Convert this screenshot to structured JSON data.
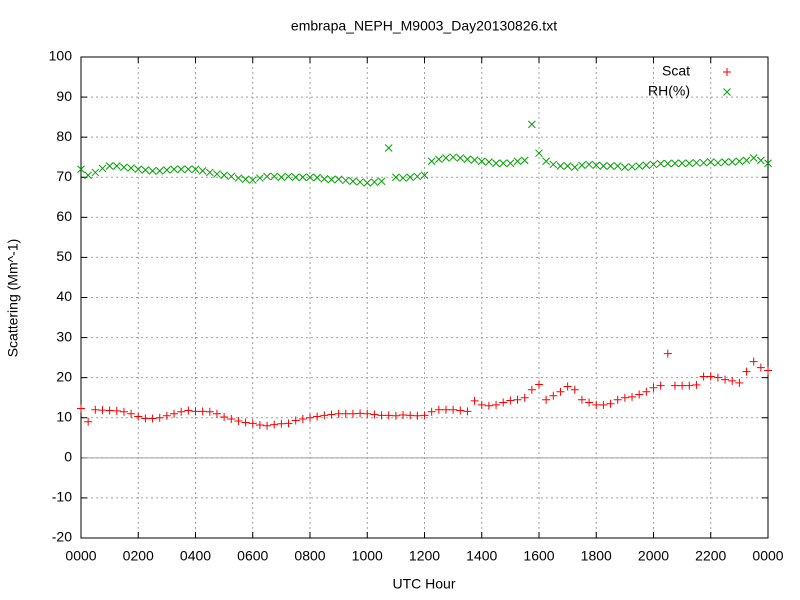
{
  "chart_data": {
    "type": "scatter",
    "title": "embrapa_NEPH_M9003_Day20130826.txt",
    "x_label": "UTC Hour",
    "y_label": "Scattering (Mm^-1)",
    "xlim": [
      0,
      24
    ],
    "xticks": [
      {
        "value": 0,
        "label": "0000"
      },
      {
        "value": 2,
        "label": "0200"
      },
      {
        "value": 4,
        "label": "0400"
      },
      {
        "value": 6,
        "label": "0600"
      },
      {
        "value": 8,
        "label": "0800"
      },
      {
        "value": 10,
        "label": "1000"
      },
      {
        "value": 12,
        "label": "1200"
      },
      {
        "value": 14,
        "label": "1400"
      },
      {
        "value": 16,
        "label": "1600"
      },
      {
        "value": 18,
        "label": "1800"
      },
      {
        "value": 20,
        "label": "2000"
      },
      {
        "value": 22,
        "label": "2200"
      },
      {
        "value": 24,
        "label": "0000"
      }
    ],
    "ylim": [
      -20,
      100
    ],
    "yticks": [
      -20,
      -10,
      0,
      10,
      20,
      30,
      40,
      50,
      60,
      70,
      80,
      90,
      100
    ],
    "grid": true,
    "zeroaxis": true,
    "legend": "top-right",
    "x": [
      0,
      0.25,
      0.5,
      0.75,
      1,
      1.25,
      1.5,
      1.75,
      2,
      2.25,
      2.5,
      2.75,
      3,
      3.25,
      3.5,
      3.75,
      4,
      4.25,
      4.5,
      4.75,
      5,
      5.25,
      5.5,
      5.75,
      6,
      6.25,
      6.5,
      6.75,
      7,
      7.25,
      7.5,
      7.75,
      8,
      8.25,
      8.5,
      8.75,
      9,
      9.25,
      9.5,
      9.75,
      10,
      10.25,
      10.5,
      10.75,
      11,
      11.25,
      11.5,
      11.75,
      12,
      12.25,
      12.5,
      12.75,
      13,
      13.25,
      13.5,
      13.75,
      14,
      14.25,
      14.5,
      14.75,
      15,
      15.25,
      15.5,
      15.75,
      16,
      16.25,
      16.5,
      16.75,
      17,
      17.25,
      17.5,
      17.75,
      18,
      18.25,
      18.5,
      18.75,
      19,
      19.25,
      19.5,
      19.75,
      20,
      20.25,
      20.5,
      20.75,
      21,
      21.25,
      21.5,
      21.75,
      22,
      22.25,
      22.5,
      22.75,
      23,
      23.25,
      23.5,
      23.75,
      24
    ],
    "series": [
      {
        "name": "Scat",
        "color": "#ff0000",
        "marker": "plus",
        "values": [
          12.3,
          9.0,
          12.0,
          11.9,
          11.8,
          11.7,
          11.5,
          11.0,
          10.3,
          9.8,
          9.8,
          10.0,
          10.5,
          11.0,
          11.5,
          11.8,
          11.6,
          11.6,
          11.5,
          11.0,
          10.2,
          9.7,
          9.2,
          8.8,
          8.6,
          8.2,
          8.0,
          8.3,
          8.5,
          8.6,
          9.3,
          9.7,
          10.0,
          10.3,
          10.6,
          10.8,
          11.0,
          11.0,
          11.0,
          11.1,
          11.0,
          10.8,
          10.6,
          10.6,
          10.5,
          10.7,
          10.6,
          10.5,
          10.6,
          11.5,
          12.0,
          12.0,
          12.0,
          11.8,
          11.6,
          14.2,
          13.2,
          13.0,
          13.2,
          13.8,
          14.3,
          14.5,
          15.0,
          17.0,
          18.3,
          14.5,
          15.5,
          16.5,
          17.8,
          17.0,
          14.5,
          13.8,
          13.2,
          13.2,
          13.5,
          14.5,
          15.0,
          15.2,
          15.8,
          16.5,
          17.5,
          18.0,
          26.0,
          18.0,
          18.0,
          18.0,
          18.2,
          20.3,
          20.3,
          20.0,
          19.5,
          19.2,
          18.7,
          21.5,
          24.0,
          22.5,
          21.8
        ]
      },
      {
        "name": "RH(%)",
        "color": "#00a000",
        "marker": "cross",
        "values": [
          72.0,
          70.5,
          71.2,
          72.2,
          72.8,
          72.8,
          72.5,
          72.3,
          72.0,
          71.8,
          71.6,
          71.6,
          71.8,
          72.0,
          72.0,
          72.0,
          72.0,
          71.6,
          71.2,
          70.8,
          70.5,
          70.2,
          69.8,
          69.5,
          69.3,
          69.8,
          70.2,
          70.2,
          70.0,
          70.2,
          70.0,
          70.0,
          70.0,
          69.9,
          69.6,
          69.4,
          69.5,
          69.2,
          69.0,
          68.8,
          68.6,
          68.8,
          69.0,
          77.3,
          70.0,
          69.8,
          70.0,
          70.2,
          70.5,
          74.0,
          74.5,
          74.8,
          75.0,
          74.8,
          74.5,
          74.3,
          74.0,
          73.8,
          73.5,
          73.5,
          73.5,
          74.0,
          74.2,
          83.2,
          76.0,
          74.0,
          73.2,
          72.8,
          72.8,
          72.5,
          73.0,
          73.2,
          73.0,
          72.8,
          72.8,
          72.8,
          72.5,
          72.6,
          72.8,
          73.0,
          73.2,
          73.4,
          73.4,
          73.5,
          73.5,
          73.5,
          73.6,
          73.6,
          73.8,
          73.6,
          73.8,
          73.8,
          74.0,
          74.2,
          74.8,
          74.2,
          73.5
        ]
      }
    ]
  }
}
